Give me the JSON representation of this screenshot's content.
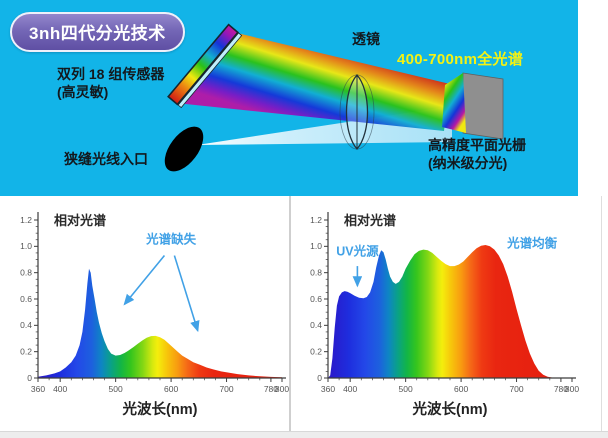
{
  "hero": {
    "badge": "3nh四代分光技术",
    "labels": {
      "sensor_line1": "双列 18 组传感器",
      "sensor_line2": "(高灵敏)",
      "slit": "狭缝光线入口",
      "lens": "透镜",
      "spectrum_range": "400-700nm全光谱",
      "grating_line1": "高精度平面光栅",
      "grating_line2": "(纳米级分光)"
    },
    "colors": {
      "background": "#12b4e8",
      "badge_fill": "#7467b6",
      "badge_border": "#eef0fa",
      "spectrum_range_text": "#f4f213",
      "label_text": "#13181d",
      "annotation_blue": "#41a1e6"
    }
  },
  "spectrum_gradient": [
    {
      "at": 0.0,
      "c": "#2b17c8"
    },
    {
      "at": 0.09,
      "c": "#1e2ede"
    },
    {
      "at": 0.16,
      "c": "#2348e8"
    },
    {
      "at": 0.22,
      "c": "#1d60de"
    },
    {
      "at": 0.26,
      "c": "#0e85c4"
    },
    {
      "at": 0.3,
      "c": "#0aa285"
    },
    {
      "at": 0.34,
      "c": "#13b545"
    },
    {
      "at": 0.38,
      "c": "#35c51d"
    },
    {
      "at": 0.43,
      "c": "#84d714"
    },
    {
      "at": 0.47,
      "c": "#d7e90f"
    },
    {
      "at": 0.49,
      "c": "#f4ee0c"
    },
    {
      "at": 0.53,
      "c": "#f7c40b"
    },
    {
      "at": 0.57,
      "c": "#f89d10"
    },
    {
      "at": 0.61,
      "c": "#f56b17"
    },
    {
      "at": 0.66,
      "c": "#ef3a13"
    },
    {
      "at": 0.72,
      "c": "#e92611"
    },
    {
      "at": 1.0,
      "c": "#e51e0e"
    }
  ],
  "chart_data": [
    {
      "type": "area",
      "title": "相对光谱",
      "xlabel": "光波长(nm)",
      "ylabel": "",
      "xlim": [
        360,
        800
      ],
      "ylim": [
        0,
        1.2
      ],
      "xticks": [
        360,
        400,
        500,
        600,
        700,
        780,
        800
      ],
      "yticks": [
        "0",
        "0.2",
        "0.4",
        "0.6",
        "0.8",
        "1.0",
        "1.2"
      ],
      "x_minor_step": 20,
      "y_minor_step": 0.05,
      "grid": false,
      "fill": "spectrum-gradient",
      "points": [
        [
          360,
          0.01
        ],
        [
          375,
          0.02
        ],
        [
          390,
          0.035
        ],
        [
          400,
          0.05
        ],
        [
          410,
          0.08
        ],
        [
          420,
          0.12
        ],
        [
          428,
          0.17
        ],
        [
          435,
          0.25
        ],
        [
          440,
          0.35
        ],
        [
          445,
          0.52
        ],
        [
          449,
          0.72
        ],
        [
          452,
          0.83
        ],
        [
          455,
          0.8
        ],
        [
          458,
          0.7
        ],
        [
          462,
          0.6
        ],
        [
          466,
          0.5
        ],
        [
          470,
          0.42
        ],
        [
          475,
          0.34
        ],
        [
          480,
          0.28
        ],
        [
          486,
          0.22
        ],
        [
          492,
          0.185
        ],
        [
          500,
          0.17
        ],
        [
          508,
          0.175
        ],
        [
          516,
          0.19
        ],
        [
          524,
          0.21
        ],
        [
          532,
          0.235
        ],
        [
          540,
          0.26
        ],
        [
          548,
          0.285
        ],
        [
          556,
          0.305
        ],
        [
          564,
          0.318
        ],
        [
          572,
          0.32
        ],
        [
          580,
          0.31
        ],
        [
          588,
          0.29
        ],
        [
          596,
          0.26
        ],
        [
          604,
          0.23
        ],
        [
          612,
          0.2
        ],
        [
          620,
          0.17
        ],
        [
          630,
          0.145
        ],
        [
          640,
          0.12
        ],
        [
          652,
          0.1
        ],
        [
          664,
          0.08
        ],
        [
          676,
          0.065
        ],
        [
          690,
          0.05
        ],
        [
          705,
          0.04
        ],
        [
          720,
          0.03
        ],
        [
          740,
          0.02
        ],
        [
          760,
          0.013
        ],
        [
          780,
          0.008
        ],
        [
          800,
          0.005
        ]
      ],
      "annotations": [
        {
          "text": "光谱缺失",
          "x": 600,
          "y": 1.02,
          "color": "#41a1e6"
        }
      ],
      "arrows": [
        {
          "x1": 588,
          "y1": 0.93,
          "x2": 516,
          "y2": 0.56,
          "color": "#41a1e6"
        },
        {
          "x1": 606,
          "y1": 0.93,
          "x2": 648,
          "y2": 0.36,
          "color": "#41a1e6"
        }
      ]
    },
    {
      "type": "area",
      "title": "相对光谱",
      "xlabel": "光波长(nm)",
      "ylabel": "",
      "xlim": [
        360,
        800
      ],
      "ylim": [
        0,
        1.2
      ],
      "xticks": [
        360,
        400,
        500,
        600,
        700,
        780,
        800
      ],
      "yticks": [
        "0",
        "0.2",
        "0.4",
        "0.6",
        "0.8",
        "1.0",
        "1.2"
      ],
      "x_minor_step": 20,
      "y_minor_step": 0.05,
      "grid": false,
      "fill": "spectrum-gradient",
      "points": [
        [
          360,
          0.0
        ],
        [
          364,
          0.02
        ],
        [
          368,
          0.15
        ],
        [
          372,
          0.38
        ],
        [
          376,
          0.55
        ],
        [
          380,
          0.62
        ],
        [
          385,
          0.65
        ],
        [
          390,
          0.66
        ],
        [
          395,
          0.655
        ],
        [
          400,
          0.645
        ],
        [
          408,
          0.625
        ],
        [
          416,
          0.61
        ],
        [
          424,
          0.605
        ],
        [
          430,
          0.615
        ],
        [
          436,
          0.65
        ],
        [
          442,
          0.73
        ],
        [
          447,
          0.84
        ],
        [
          452,
          0.93
        ],
        [
          456,
          0.97
        ],
        [
          460,
          0.955
        ],
        [
          464,
          0.9
        ],
        [
          468,
          0.83
        ],
        [
          472,
          0.77
        ],
        [
          477,
          0.73
        ],
        [
          482,
          0.715
        ],
        [
          488,
          0.73
        ],
        [
          494,
          0.77
        ],
        [
          500,
          0.83
        ],
        [
          508,
          0.89
        ],
        [
          516,
          0.94
        ],
        [
          524,
          0.965
        ],
        [
          532,
          0.975
        ],
        [
          540,
          0.97
        ],
        [
          548,
          0.95
        ],
        [
          556,
          0.92
        ],
        [
          564,
          0.89
        ],
        [
          572,
          0.865
        ],
        [
          580,
          0.85
        ],
        [
          588,
          0.85
        ],
        [
          596,
          0.862
        ],
        [
          604,
          0.885
        ],
        [
          612,
          0.92
        ],
        [
          620,
          0.955
        ],
        [
          628,
          0.985
        ],
        [
          636,
          1.005
        ],
        [
          644,
          1.01
        ],
        [
          652,
          1.0
        ],
        [
          660,
          0.975
        ],
        [
          668,
          0.93
        ],
        [
          676,
          0.865
        ],
        [
          684,
          0.77
        ],
        [
          692,
          0.655
        ],
        [
          700,
          0.525
        ],
        [
          708,
          0.4
        ],
        [
          716,
          0.285
        ],
        [
          724,
          0.185
        ],
        [
          732,
          0.11
        ],
        [
          740,
          0.055
        ],
        [
          748,
          0.025
        ],
        [
          756,
          0.01
        ],
        [
          764,
          0.004
        ],
        [
          780,
          0.0
        ]
      ],
      "annotations": [
        {
          "text": "UV光源",
          "x": 413,
          "y": 0.93,
          "color": "#41a1e6"
        },
        {
          "text": "光谱均衡",
          "x": 728,
          "y": 0.99,
          "color": "#41a1e6"
        }
      ],
      "arrows": [
        {
          "x1": 413,
          "y1": 0.85,
          "x2": 413,
          "y2": 0.7,
          "color": "#41a1e6"
        }
      ]
    }
  ]
}
